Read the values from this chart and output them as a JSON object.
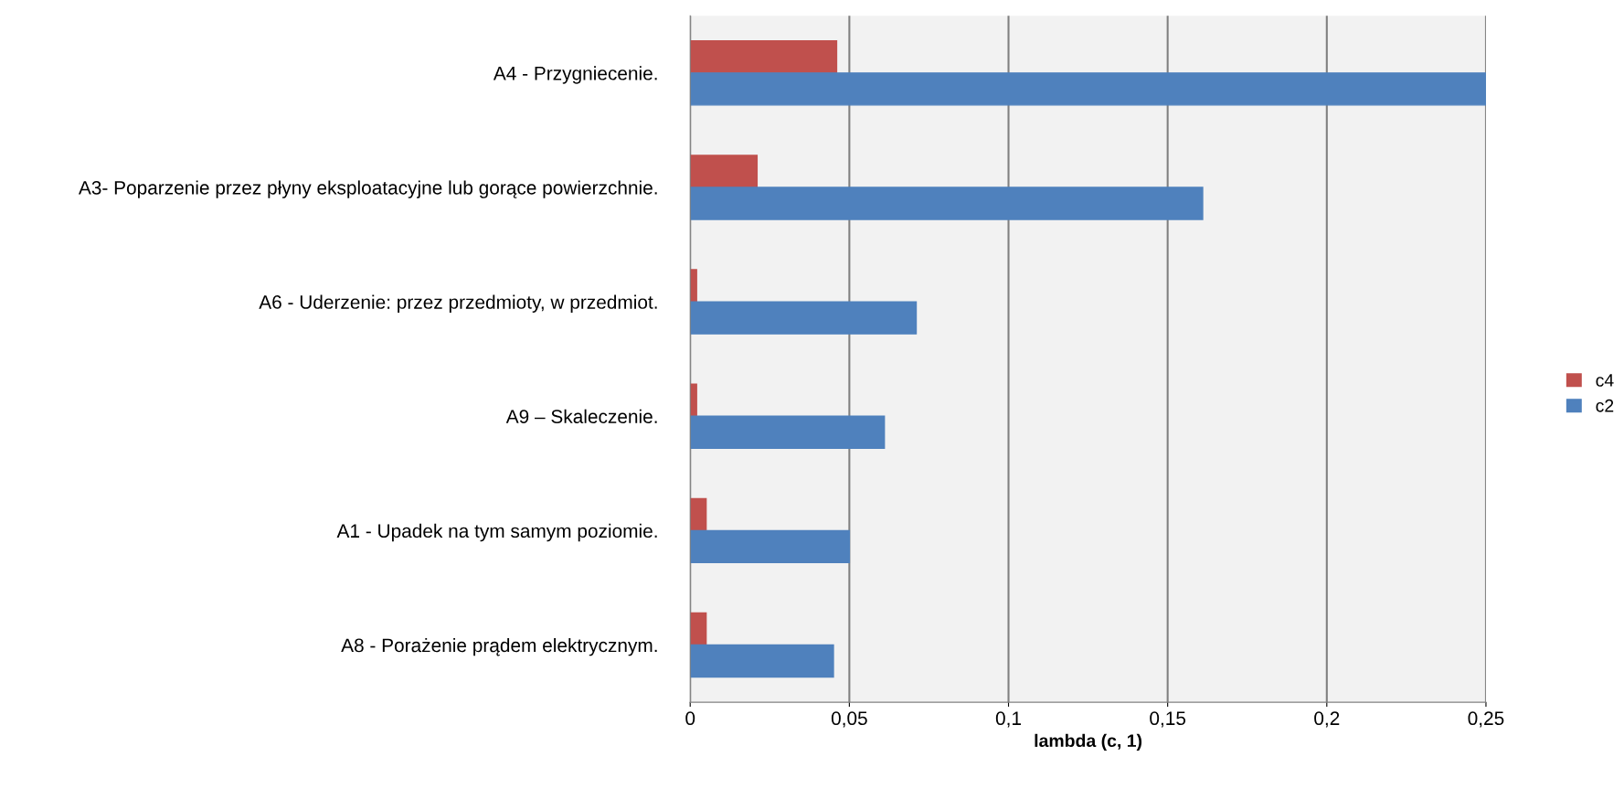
{
  "chart_data": {
    "type": "bar",
    "orientation": "horizontal",
    "xlabel": "lambda (c, 1)",
    "categories": [
      "A4 - Przygniecenie.",
      "A3- Poparzenie przez płyny eksploatacyjne lub gorące powierzchnie.",
      "A6 - Uderzenie: przez przedmioty, w przedmiot.",
      "A9 – Skaleczenie.",
      "A1 - Upadek na tym samym poziomie.",
      "A8 - Porażenie prądem elektrycznym."
    ],
    "series": [
      {
        "name": "c4",
        "color": "#c0504d",
        "values": [
          0.046,
          0.021,
          0.002,
          0.002,
          0.005,
          0.005
        ]
      },
      {
        "name": "c2",
        "color": "#4f81bd",
        "values": [
          0.25,
          0.161,
          0.071,
          0.061,
          0.05,
          0.045
        ]
      }
    ],
    "xlim": [
      0,
      0.25
    ],
    "xticks": [
      0,
      {
        "value": 0.05,
        "label": "0,05"
      },
      {
        "value": 0.1,
        "label": "0,1"
      },
      {
        "value": 0.15,
        "label": "0,15"
      },
      {
        "value": 0.2,
        "label": "0,2"
      },
      {
        "value": 0.25,
        "label": "0,25"
      }
    ],
    "grid": "x",
    "legend": "right"
  }
}
